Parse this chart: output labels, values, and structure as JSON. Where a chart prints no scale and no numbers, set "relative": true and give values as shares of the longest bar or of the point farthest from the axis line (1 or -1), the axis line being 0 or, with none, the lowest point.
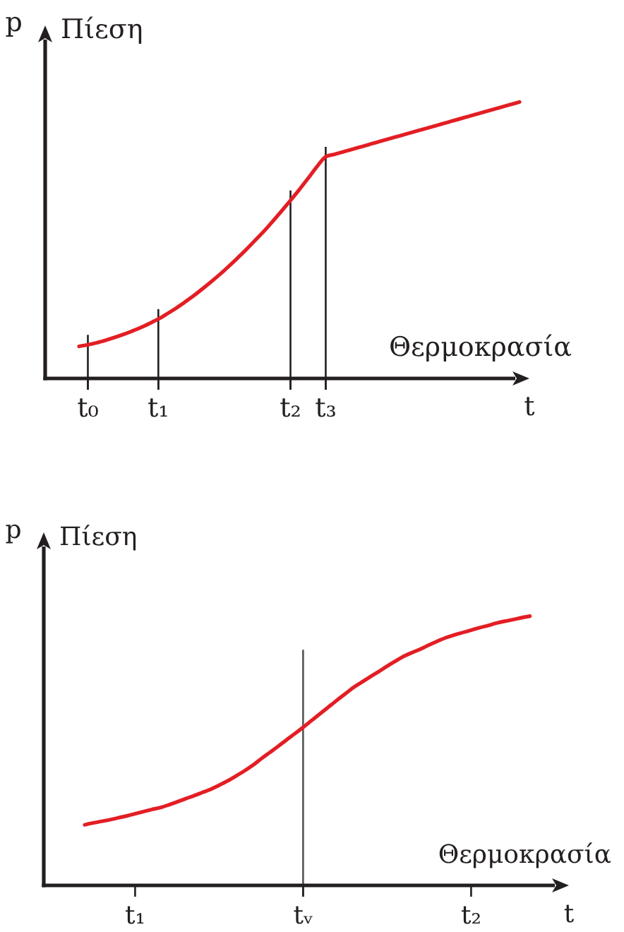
{
  "chart_data": [
    {
      "type": "line",
      "relative": true,
      "xlabel": "Θερμοκρασία",
      "ylabel": "p Πίεση",
      "annotations": [
        "t"
      ],
      "categories": [
        null,
        "t₀",
        null,
        null,
        null,
        null,
        null,
        null,
        null,
        "t₁",
        null,
        null,
        null,
        null,
        null,
        null,
        null,
        null,
        null,
        null,
        null,
        null,
        null,
        null,
        "t₂",
        null,
        null,
        null,
        "t₃",
        null,
        null,
        null,
        null,
        null,
        null,
        null,
        null,
        null,
        null,
        null,
        null,
        null,
        null,
        null,
        null,
        null,
        null,
        null,
        null,
        null,
        null
      ],
      "values": [
        0.116,
        0.122,
        0.129,
        0.138,
        0.148,
        0.159,
        0.171,
        0.184,
        0.199,
        0.215,
        0.234,
        0.254,
        0.276,
        0.299,
        0.324,
        0.35,
        0.377,
        0.406,
        0.436,
        0.467,
        0.5,
        0.533,
        0.569,
        0.606,
        0.644,
        0.683,
        0.724,
        0.766,
        0.802,
        0.811,
        0.82,
        0.829,
        0.838,
        0.847,
        0.856,
        0.865,
        0.874,
        0.883,
        0.892,
        0.901,
        0.91,
        0.919,
        0.928,
        0.937,
        0.946,
        0.955,
        0.964,
        0.973,
        0.982,
        0.991,
        1
      ],
      "color": "#e31e24",
      "ref_lines": [
        {
          "axis": "x",
          "value": "t₀",
          "color": "#231f20"
        },
        {
          "axis": "x",
          "value": "t₁",
          "color": "#231f20"
        },
        {
          "axis": "x",
          "value": "t₂",
          "color": "#231f20"
        },
        {
          "axis": "x",
          "value": "t₃",
          "color": "#231f20"
        }
      ]
    },
    {
      "type": "line",
      "relative": true,
      "xlabel": "Θερμοκρασία",
      "ylabel": "p Πίεση",
      "annotations": [
        "t"
      ],
      "categories": [
        null,
        null,
        null,
        null,
        null,
        null,
        "t₁",
        null,
        null,
        null,
        null,
        null,
        null,
        null,
        null,
        null,
        null,
        null,
        null,
        null,
        null,
        null,
        null,
        null,
        null,
        null,
        "tᵥ",
        null,
        null,
        null,
        null,
        null,
        null,
        null,
        null,
        null,
        null,
        null,
        null,
        null,
        null,
        null,
        null,
        null,
        null,
        null,
        "t₂",
        null,
        null,
        null,
        null,
        null,
        null,
        null
      ],
      "values": [
        0.225,
        0.232,
        0.238,
        0.244,
        0.251,
        0.258,
        0.266,
        0.274,
        0.282,
        0.289,
        0.299,
        0.31,
        0.322,
        0.333,
        0.345,
        0.357,
        0.372,
        0.388,
        0.406,
        0.425,
        0.446,
        0.47,
        0.493,
        0.516,
        0.54,
        0.563,
        0.587,
        0.612,
        0.637,
        0.662,
        0.687,
        0.711,
        0.735,
        0.755,
        0.775,
        0.794,
        0.814,
        0.833,
        0.851,
        0.865,
        0.878,
        0.893,
        0.907,
        0.92,
        0.93,
        0.939,
        0.948,
        0.957,
        0.965,
        0.974,
        0.981,
        0.987,
        0.994,
        1
      ],
      "color": "#e31e24",
      "ref_lines": [
        {
          "axis": "x",
          "value": "tᵥ",
          "color": "#555555"
        }
      ]
    }
  ]
}
